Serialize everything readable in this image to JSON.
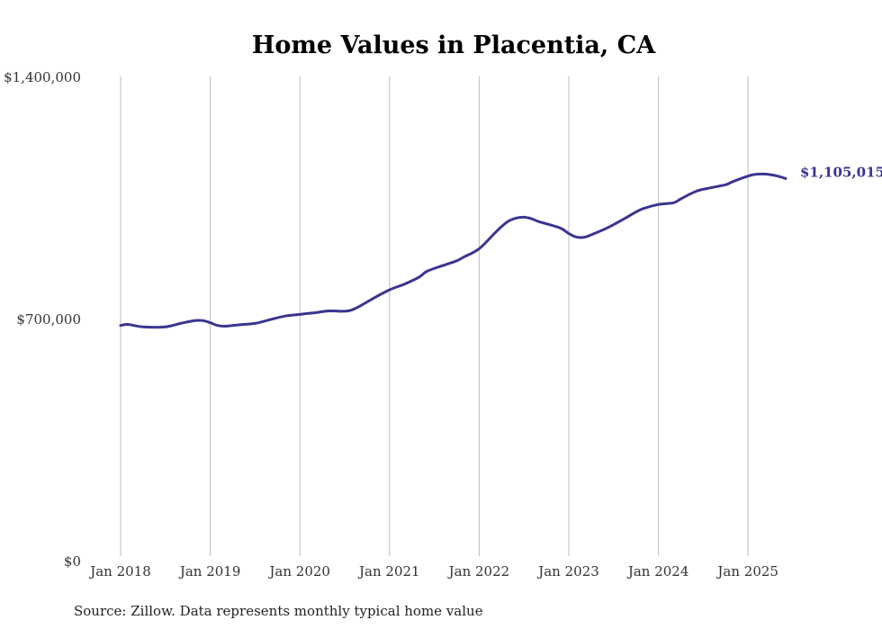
{
  "chart_data": {
    "type": "line",
    "title": "Home Values in Placentia, CA",
    "source": "Source: Zillow. Data represents monthly typical home value",
    "end_label": "$1,105,015",
    "ylim": [
      0,
      1400000
    ],
    "yticks": [
      {
        "value": 0,
        "label": "$0"
      },
      {
        "value": 700000,
        "label": "$700,000"
      },
      {
        "value": 1400000,
        "label": "$1,400,000"
      }
    ],
    "xticks": [
      {
        "value": 2018.0,
        "label": "Jan 2018"
      },
      {
        "value": 2019.0,
        "label": "Jan 2019"
      },
      {
        "value": 2020.0,
        "label": "Jan 2020"
      },
      {
        "value": 2021.0,
        "label": "Jan 2021"
      },
      {
        "value": 2022.0,
        "label": "Jan 2022"
      },
      {
        "value": 2023.0,
        "label": "Jan 2023"
      },
      {
        "value": 2024.0,
        "label": "Jan 2024"
      },
      {
        "value": 2025.0,
        "label": "Jan 2025"
      }
    ],
    "xlim": [
      2018.0,
      2025.5
    ],
    "grid": "vertical",
    "line_color": "#3a3590",
    "series": [
      {
        "x": [
          2018.0,
          2018.08,
          2018.25,
          2018.5,
          2018.67,
          2018.83,
          2018.92,
          2019.0,
          2019.08,
          2019.17,
          2019.25,
          2019.33,
          2019.5,
          2019.67,
          2019.83,
          2020.0,
          2020.17,
          2020.33,
          2020.5,
          2020.58,
          2020.67,
          2020.83,
          2021.0,
          2021.17,
          2021.33,
          2021.42,
          2021.58,
          2021.75,
          2021.83,
          2022.0,
          2022.17,
          2022.25,
          2022.33,
          2022.42,
          2022.5,
          2022.58,
          2022.67,
          2022.83,
          2022.92,
          2023.0,
          2023.08,
          2023.17,
          2023.25,
          2023.42,
          2023.58,
          2023.75,
          2023.83,
          2024.0,
          2024.17,
          2024.25,
          2024.42,
          2024.58,
          2024.75,
          2024.83,
          2025.0,
          2025.08,
          2025.17,
          2025.25,
          2025.33,
          2025.42
        ],
        "y": [
          680000,
          683000,
          676000,
          676000,
          686000,
          694000,
          694000,
          688000,
          680000,
          678000,
          680000,
          682000,
          686000,
          697000,
          707000,
          712000,
          717000,
          722000,
          721000,
          725000,
          736000,
          760000,
          783000,
          800000,
          820000,
          837000,
          852000,
          867000,
          878000,
          902000,
          946000,
          966000,
          982000,
          991000,
          993000,
          989000,
          980000,
          968000,
          960000,
          946000,
          936000,
          935000,
          942000,
          961000,
          983000,
          1008000,
          1018000,
          1030000,
          1035000,
          1046000,
          1068000,
          1078000,
          1087000,
          1096000,
          1112000,
          1117000,
          1118000,
          1116000,
          1112000,
          1105015
        ]
      }
    ]
  }
}
